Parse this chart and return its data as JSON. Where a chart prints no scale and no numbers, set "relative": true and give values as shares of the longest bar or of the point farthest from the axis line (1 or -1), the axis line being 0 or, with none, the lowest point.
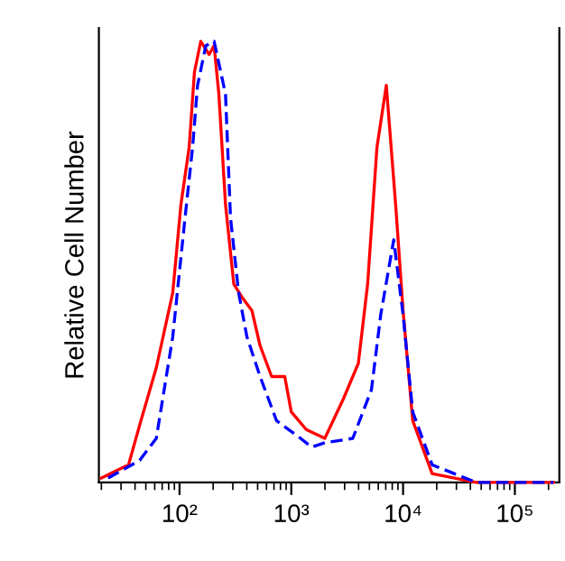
{
  "chart_data": {
    "type": "line",
    "ylabel": "Relative Cell Number",
    "relative": true,
    "log": "x",
    "xlim": [
      19,
      250000
    ],
    "xticks": [
      {
        "value": 100,
        "label": "10²"
      },
      {
        "value": 1000,
        "label": "10³"
      },
      {
        "value": 10000,
        "label": "10⁴"
      },
      {
        "value": 100000,
        "label": "10⁵"
      }
    ],
    "tick_labels": "x",
    "grid": false,
    "legend": false,
    "series": [
      {
        "color": "#ff0000",
        "line_style": "solid",
        "x": [
          20,
          35,
          44,
          62,
          87,
          103,
          122,
          136,
          155,
          184,
          204,
          225,
          258,
          306,
          362,
          444,
          526,
          667,
          874,
          1000,
          1360,
          1995,
          2930,
          3980,
          4820,
          5840,
          7080,
          8580,
          10000,
          12200,
          18200,
          45200,
          221000
        ],
        "values": [
          0.01,
          0.04,
          0.13,
          0.26,
          0.43,
          0.63,
          0.76,
          0.93,
          1.0,
          0.97,
          0.99,
          0.88,
          0.63,
          0.45,
          0.42,
          0.39,
          0.31,
          0.24,
          0.24,
          0.16,
          0.12,
          0.1,
          0.19,
          0.27,
          0.45,
          0.76,
          0.9,
          0.63,
          0.39,
          0.14,
          0.02,
          0,
          0
        ]
      },
      {
        "color": "#0000ff",
        "line_style": "dashed",
        "x": [
          23,
          44,
          62,
          87,
          111,
          131,
          145,
          172,
          204,
          258,
          286,
          338,
          401,
          526,
          738,
          1210,
          1525,
          1995,
          3550,
          5210,
          6310,
          8250,
          10000,
          12200,
          18200,
          45200,
          221000
        ],
        "values": [
          0.01,
          0.05,
          0.1,
          0.33,
          0.59,
          0.76,
          0.9,
          0.99,
          1.0,
          0.88,
          0.6,
          0.43,
          0.33,
          0.24,
          0.14,
          0.1,
          0.08,
          0.09,
          0.1,
          0.21,
          0.38,
          0.55,
          0.38,
          0.16,
          0.04,
          0,
          0
        ]
      }
    ]
  }
}
